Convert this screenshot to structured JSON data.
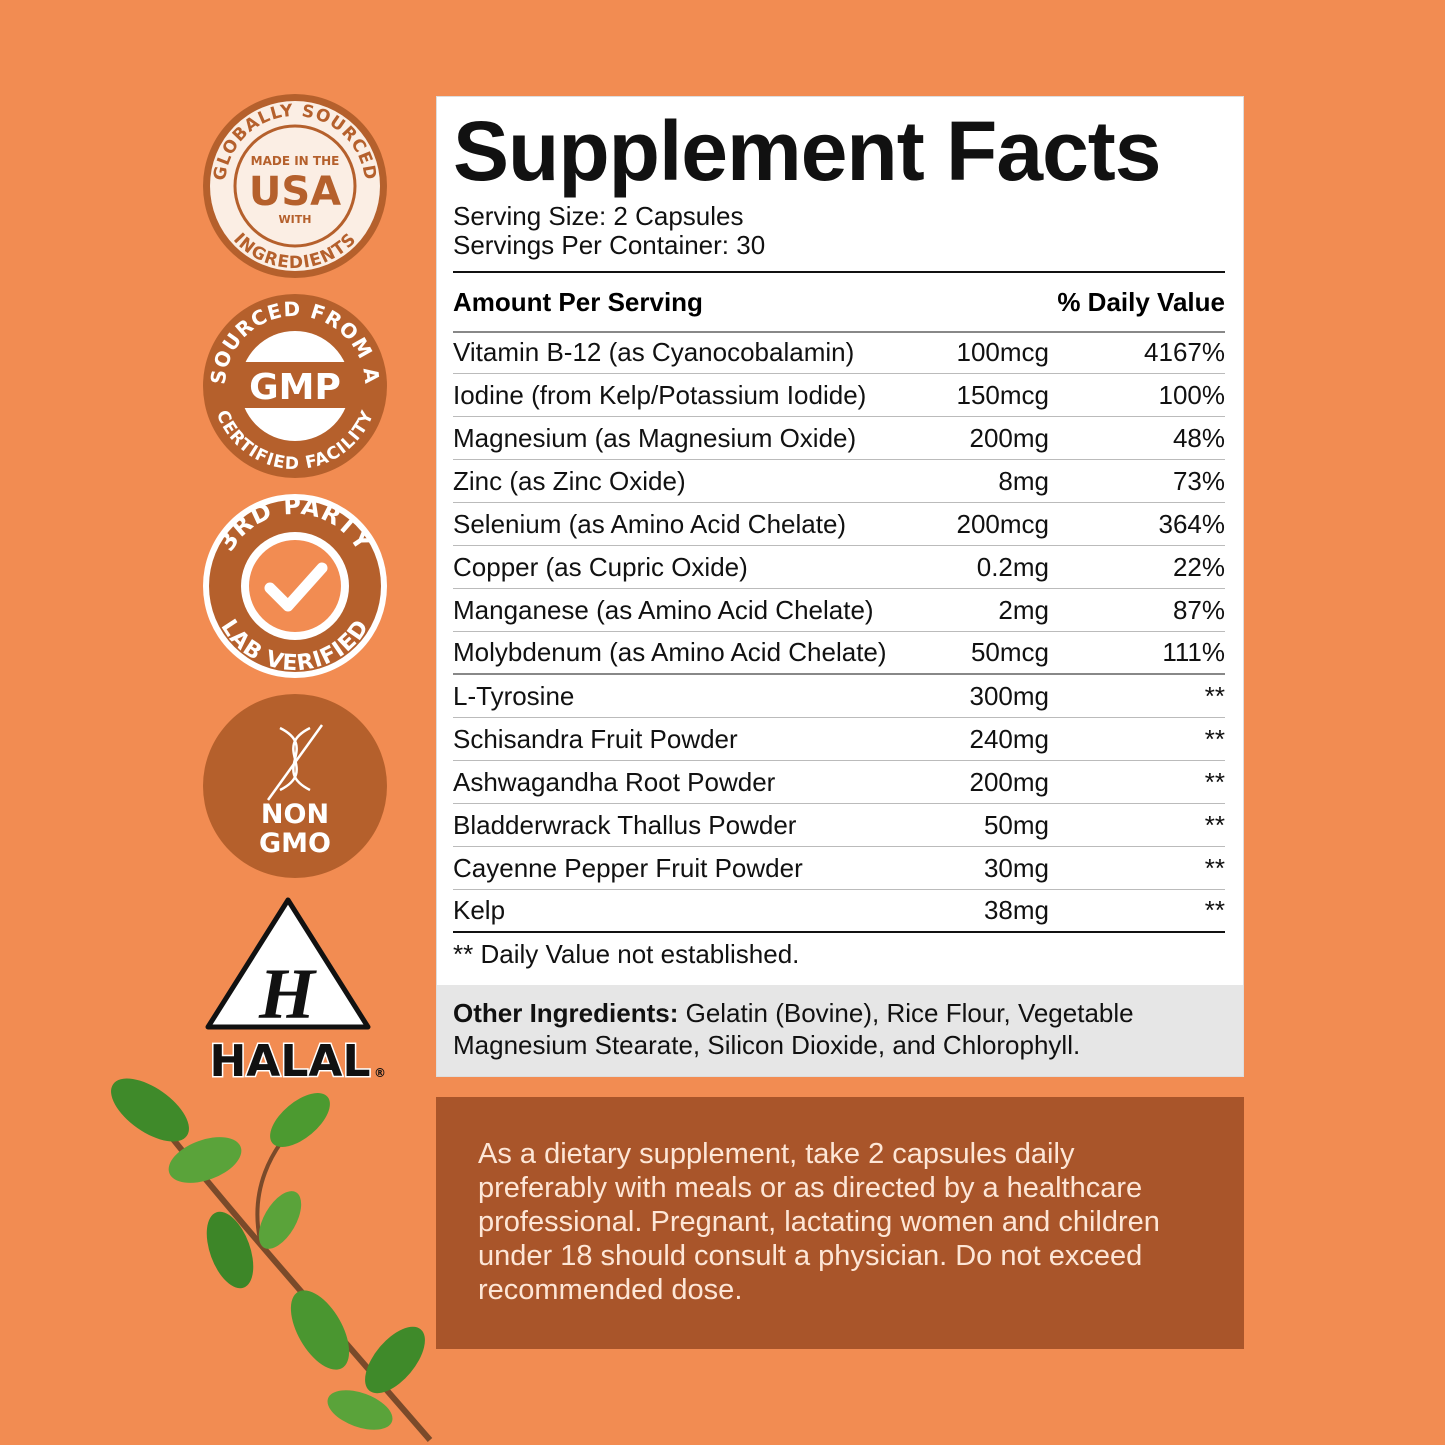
{
  "badges": {
    "usa": {
      "top": "GLOBALLY SOURCED",
      "made": "MADE IN THE",
      "country": "USA",
      "with": "WITH",
      "bottom": "INGREDIENTS"
    },
    "gmp": {
      "top": "SOURCED FROM A",
      "center": "GMP",
      "bottom": "CERTIFIED FACILITY"
    },
    "lab": {
      "top": "3RD PARTY",
      "bottom": "LAB VERIFIED"
    },
    "nongmo": {
      "line1": "NON",
      "line2": "GMO"
    },
    "halal": {
      "letter": "H",
      "label": "HALAL",
      "mark": "®"
    }
  },
  "facts": {
    "title": "Supplement Facts",
    "serving_size": "Serving Size: 2 Capsules",
    "servings_per_container": "Servings Per Container: 30",
    "header": {
      "amount": "Amount Per Serving",
      "dv": "% Daily Value"
    },
    "rows": [
      [
        "Vitamin B-12 (as Cyanocobalamin)",
        "100mcg",
        "4167%"
      ],
      [
        "Iodine (from Kelp/Potassium Iodide)",
        "150mcg",
        "100%"
      ],
      [
        "Magnesium (as Magnesium Oxide)",
        "200mg",
        "48%"
      ],
      [
        "Zinc (as Zinc Oxide)",
        "8mg",
        "73%"
      ],
      [
        "Selenium (as Amino Acid Chelate)",
        "200mcg",
        "364%"
      ],
      [
        "Copper (as Cupric Oxide)",
        "0.2mg",
        "22%"
      ],
      [
        "Manganese (as Amino Acid Chelate)",
        "2mg",
        "87%"
      ],
      [
        "Molybdenum (as Amino Acid Chelate)",
        "50mcg",
        "111%"
      ],
      [
        "L-Tyrosine",
        "300mg",
        "**"
      ],
      [
        "Schisandra Fruit Powder",
        "240mg",
        "**"
      ],
      [
        "Ashwagandha Root Powder",
        "200mg",
        "**"
      ],
      [
        "Bladderwrack Thallus Powder",
        "50mg",
        "**"
      ],
      [
        "Cayenne Pepper Fruit Powder",
        "30mg",
        "**"
      ],
      [
        "Kelp",
        "38mg",
        "**"
      ]
    ],
    "footnote": "** Daily Value not established."
  },
  "other_ingredients": {
    "label": "Other Ingredients:",
    "text": "Gelatin (Bovine), Rice Flour, Vegetable Magnesium Stearate, Silicon Dioxide, and Chlorophyll."
  },
  "directions": "As a dietary supplement, take 2 capsules daily preferably with meals or as directed by a healthcare professional. Pregnant, lactating women and children under 18 should consult a physician. Do not exceed recommended dose."
}
